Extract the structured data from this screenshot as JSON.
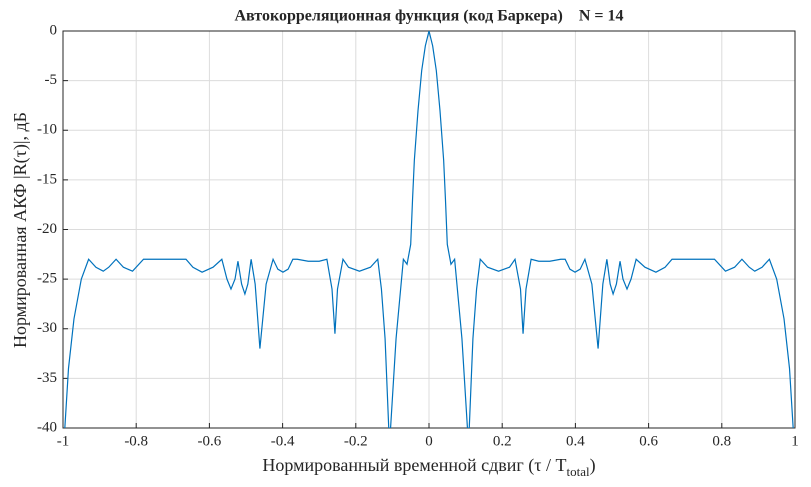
{
  "chart_data": {
    "type": "line",
    "title": "Автокорреляционная функция (код Баркера)    N = 14",
    "ylabel": "Нормированная АКФ |R(τ)|, дБ",
    "xlabel": {
      "main": "Нормированный временной сдвиг (τ / T",
      "sub": "total",
      "end": ")"
    },
    "color": "#0072BD",
    "grid": true,
    "xlim": [
      -1,
      1
    ],
    "ylim": [
      -40,
      0
    ],
    "xticks": [
      -1,
      -0.8,
      -0.6,
      -0.4,
      -0.2,
      0,
      0.2,
      0.4,
      0.6,
      0.8,
      1
    ],
    "yticks": [
      0,
      -5,
      -10,
      -15,
      -20,
      -25,
      -30,
      -35,
      -40
    ],
    "x": [
      -0.995,
      -0.985,
      -0.97,
      -0.95,
      -0.93,
      -0.91,
      -0.89,
      -0.875,
      -0.855,
      -0.835,
      -0.81,
      -0.78,
      -0.74,
      -0.7,
      -0.664,
      -0.645,
      -0.62,
      -0.59,
      -0.566,
      -0.552,
      -0.541,
      -0.53,
      -0.522,
      -0.512,
      -0.503,
      -0.495,
      -0.486,
      -0.475,
      -0.462,
      -0.445,
      -0.426,
      -0.413,
      -0.399,
      -0.385,
      -0.372,
      -0.36,
      -0.33,
      -0.3,
      -0.279,
      -0.265,
      -0.257,
      -0.25,
      -0.235,
      -0.22,
      -0.19,
      -0.16,
      -0.14,
      -0.13,
      -0.12,
      -0.11,
      -0.105,
      -0.1,
      -0.09,
      -0.08,
      -0.07,
      -0.06,
      -0.05,
      -0.045,
      -0.04,
      -0.03,
      -0.02,
      -0.01,
      0,
      0.01,
      0.02,
      0.03,
      0.04,
      0.045,
      0.05,
      0.06,
      0.07,
      0.08,
      0.09,
      0.1,
      0.105,
      0.11,
      0.12,
      0.13,
      0.14,
      0.16,
      0.19,
      0.22,
      0.235,
      0.25,
      0.257,
      0.265,
      0.279,
      0.3,
      0.33,
      0.36,
      0.372,
      0.385,
      0.399,
      0.413,
      0.426,
      0.445,
      0.462,
      0.475,
      0.486,
      0.495,
      0.503,
      0.512,
      0.522,
      0.53,
      0.541,
      0.552,
      0.566,
      0.59,
      0.62,
      0.645,
      0.664,
      0.7,
      0.74,
      0.78,
      0.81,
      0.835,
      0.855,
      0.875,
      0.89,
      0.91,
      0.93,
      0.95,
      0.97,
      0.985,
      0.995
    ],
    "values": [
      -40,
      -34,
      -29,
      -25,
      -23,
      -23.8,
      -24.2,
      -23.8,
      -23,
      -23.8,
      -24.2,
      -23,
      -23,
      -23,
      -23,
      -23.8,
      -24.3,
      -23.8,
      -23,
      -25,
      -26,
      -25,
      -23.2,
      -25.5,
      -26.5,
      -25.5,
      -23,
      -25.5,
      -32,
      -25.5,
      -23,
      -24,
      -24.3,
      -24,
      -23,
      -23,
      -23.2,
      -23.2,
      -23,
      -26,
      -30.5,
      -26,
      -23,
      -23.8,
      -24.2,
      -23.8,
      -23,
      -26,
      -31,
      -40,
      -40,
      -37,
      -31,
      -27,
      -23,
      -23.5,
      -21.5,
      -17,
      -13,
      -8,
      -4,
      -1.5,
      0,
      -1.5,
      -4,
      -8,
      -13,
      -17,
      -21.5,
      -23.5,
      -23,
      -27,
      -31,
      -37,
      -40,
      -40,
      -31,
      -26,
      -23,
      -23.8,
      -24.2,
      -23.8,
      -23,
      -26,
      -30.5,
      -26,
      -23,
      -23.2,
      -23.2,
      -23,
      -23,
      -24,
      -24.3,
      -24,
      -23,
      -25.5,
      -32,
      -25.5,
      -23,
      -25.5,
      -26.5,
      -25.5,
      -23.2,
      -25,
      -26,
      -25,
      -23,
      -23.8,
      -24.3,
      -23.8,
      -23,
      -23,
      -23,
      -23,
      -24.2,
      -23.8,
      -23,
      -23.8,
      -24.2,
      -23.8,
      -23,
      -25,
      -29,
      -34,
      -40
    ]
  }
}
